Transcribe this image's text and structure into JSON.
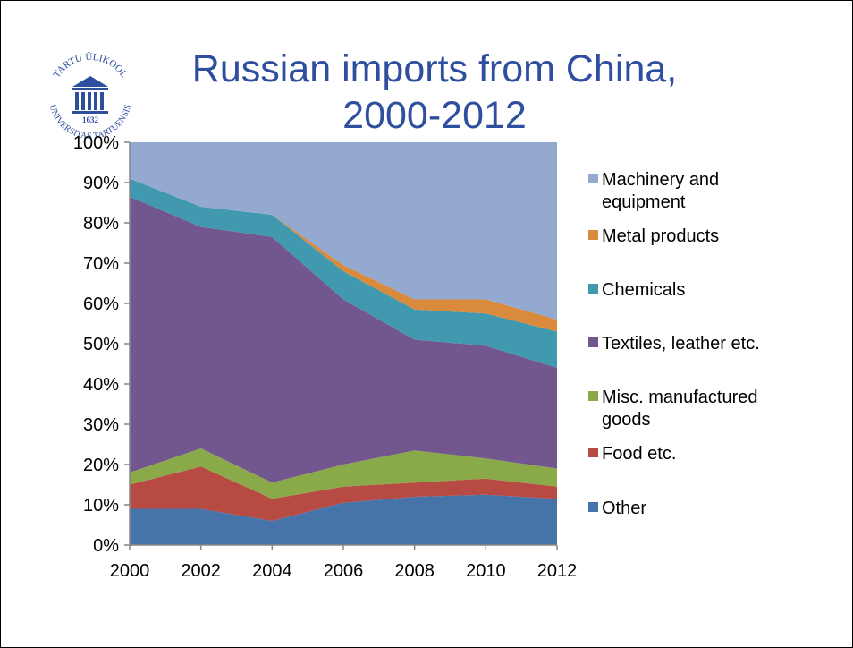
{
  "slide": {
    "title_line1": "Russian imports from China,",
    "title_line2": "2000-2012",
    "logo": {
      "text_top": "TARTU ÜLIKOOL",
      "text_bottom": "UNIVERSITAS TARTUENSIS",
      "year": "1632",
      "color": "#2e4f9e",
      "icon": "university-building-icon"
    }
  },
  "chart_data": {
    "type": "area",
    "stacked": true,
    "x": [
      2000,
      2002,
      2004,
      2006,
      2008,
      2010,
      2012
    ],
    "x_tick_labels": [
      "2000",
      "2002",
      "2004",
      "2006",
      "2008",
      "2010",
      "2012"
    ],
    "y_tick_labels": [
      "0%",
      "10%",
      "20%",
      "30%",
      "40%",
      "50%",
      "60%",
      "70%",
      "80%",
      "90%",
      "100%"
    ],
    "ylim": [
      0,
      100
    ],
    "unit": "%",
    "legend_position": "right",
    "grid": false,
    "series": [
      {
        "name": "Other",
        "color": "#4674a9",
        "values": [
          9,
          9,
          6,
          10.5,
          12,
          12.5,
          11.5
        ]
      },
      {
        "name": "Food etc.",
        "color": "#b84a44",
        "values": [
          6,
          10.5,
          5.5,
          4,
          3.5,
          4,
          3
        ]
      },
      {
        "name": "Misc. manufactured goods",
        "color": "#8aa948",
        "values": [
          3,
          4.5,
          4,
          5.5,
          8,
          5,
          4.5
        ]
      },
      {
        "name": "Textiles, leather etc.",
        "color": "#72578f",
        "values": [
          68.5,
          55,
          61,
          41,
          27.5,
          28,
          25
        ]
      },
      {
        "name": "Chemicals",
        "color": "#4199af",
        "values": [
          4.5,
          5,
          5.5,
          7,
          7.5,
          8,
          9
        ]
      },
      {
        "name": "Metal products",
        "color": "#d98a3c",
        "values": [
          0,
          0,
          0,
          1.5,
          2.5,
          3.5,
          3
        ]
      },
      {
        "name": "Machinery and equipment",
        "color": "#94a9d0",
        "values": [
          9,
          16,
          18,
          30.5,
          39,
          39,
          44
        ]
      }
    ],
    "legend": [
      {
        "lines": [
          "Machinery and",
          "equipment"
        ],
        "color": "#94a9d0"
      },
      {
        "lines": [
          "Metal products"
        ],
        "color": "#d98a3c"
      },
      {
        "lines": [
          "Chemicals"
        ],
        "color": "#4199af"
      },
      {
        "lines": [
          "Textiles, leather etc."
        ],
        "color": "#72578f"
      },
      {
        "lines": [
          "Misc. manufactured",
          "goods"
        ],
        "color": "#8aa948"
      },
      {
        "lines": [
          "Food etc."
        ],
        "color": "#b84a44"
      },
      {
        "lines": [
          "Other"
        ],
        "color": "#4674a9"
      }
    ]
  }
}
